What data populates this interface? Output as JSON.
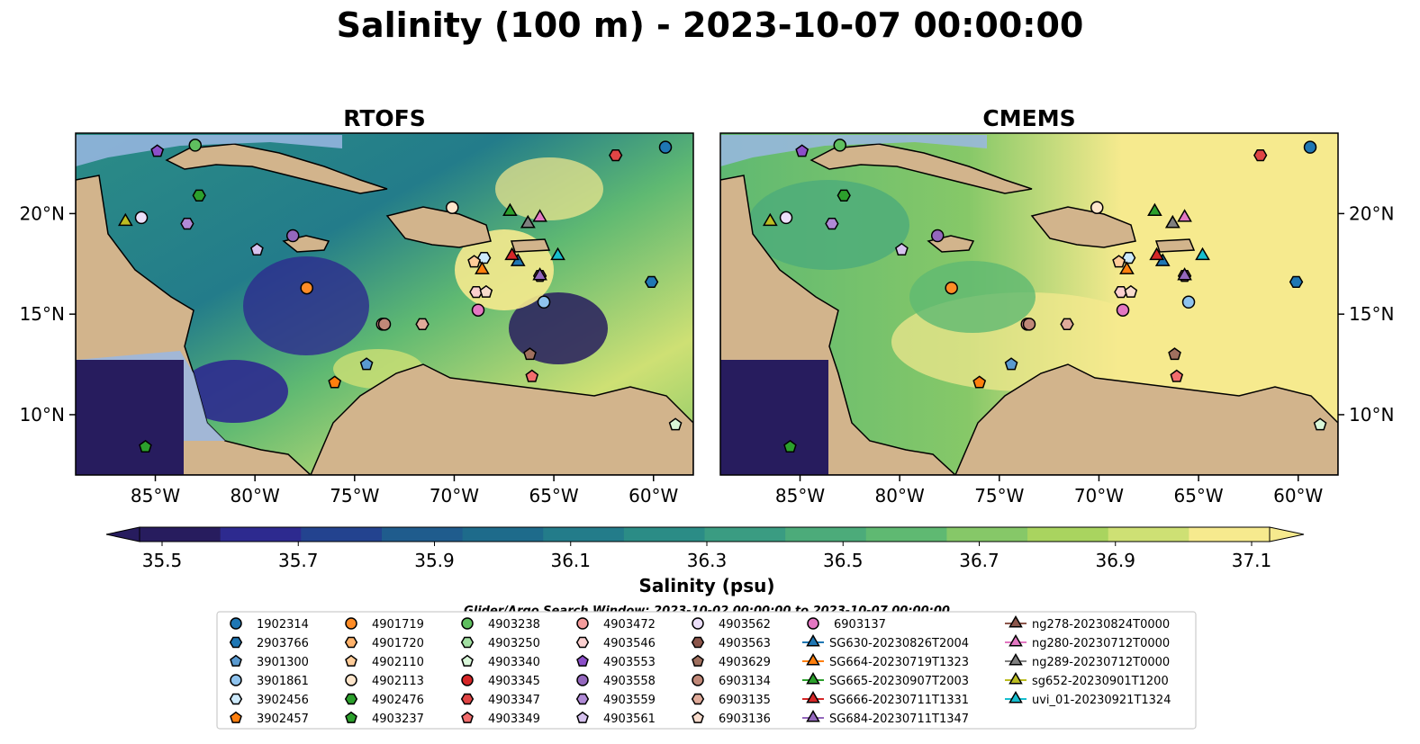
{
  "title": "Salinity (100 m) - 2023-10-07 00:00:00",
  "panels": [
    {
      "title": "RTOFS"
    },
    {
      "title": "CMEMS"
    }
  ],
  "lon_ticks": [
    "85°W",
    "80°W",
    "75°W",
    "70°W",
    "65°W",
    "60°W"
  ],
  "lat_ticks": [
    "20°N",
    "15°N",
    "10°N"
  ],
  "colorbar": {
    "label": "Salinity (psu)",
    "ticks": [
      "35.5",
      "35.7",
      "35.9",
      "36.1",
      "36.3",
      "36.5",
      "36.7",
      "36.9",
      "37.1"
    ],
    "colors": [
      "#271c5e",
      "#2d2a8f",
      "#23438f",
      "#1f5c8d",
      "#1e6b8b",
      "#237c8a",
      "#2b8c86",
      "#3a9c82",
      "#4cab7a",
      "#5fb972",
      "#86c868",
      "#a9d45f",
      "#cee074",
      "#f6ea8e"
    ]
  },
  "search_window": "Glider/Argo Search Window: 2023-10-02 00:00:00 to 2023-10-07 00:00:00",
  "colors": {
    "land": "#d2b48c",
    "shelf": "#9ab7e3"
  },
  "legend": [
    {
      "label": "1902314",
      "marker": "circle",
      "color": "#1f77b4"
    },
    {
      "label": "2903766",
      "marker": "hexagon",
      "color": "#1f77b4"
    },
    {
      "label": "3901300",
      "marker": "pentagon",
      "color": "#5a9ad0"
    },
    {
      "label": "3901861",
      "marker": "circle",
      "color": "#8fc3ee"
    },
    {
      "label": "3902456",
      "marker": "hexagon",
      "color": "#cdeafc"
    },
    {
      "label": "3902457",
      "marker": "pentagon",
      "color": "#ff7f0e"
    },
    {
      "label": "4901719",
      "marker": "circle",
      "color": "#ff8c26"
    },
    {
      "label": "4901720",
      "marker": "hexagon",
      "color": "#ffb26b"
    },
    {
      "label": "4902110",
      "marker": "pentagon",
      "color": "#ffcc99"
    },
    {
      "label": "4902113",
      "marker": "circle",
      "color": "#ffe6cc"
    },
    {
      "label": "4902476",
      "marker": "hexagon",
      "color": "#2ca02c"
    },
    {
      "label": "4903237",
      "marker": "pentagon",
      "color": "#2ca02c"
    },
    {
      "label": "4903238",
      "marker": "circle",
      "color": "#5fbf5f"
    },
    {
      "label": "4903250",
      "marker": "hexagon",
      "color": "#a3e0a3"
    },
    {
      "label": "4903340",
      "marker": "pentagon",
      "color": "#d9f7d9"
    },
    {
      "label": "4903345",
      "marker": "circle",
      "color": "#d62728"
    },
    {
      "label": "4903347",
      "marker": "hexagon",
      "color": "#e04545"
    },
    {
      "label": "4903349",
      "marker": "pentagon",
      "color": "#f26d6d"
    },
    {
      "label": "4903472",
      "marker": "circle",
      "color": "#f59c9c"
    },
    {
      "label": "4903546",
      "marker": "hexagon",
      "color": "#fbd0d0"
    },
    {
      "label": "4903553",
      "marker": "pentagon",
      "color": "#8c4fc9"
    },
    {
      "label": "4903558",
      "marker": "circle",
      "color": "#9467bd"
    },
    {
      "label": "4903559",
      "marker": "hexagon",
      "color": "#b08ad6"
    },
    {
      "label": "4903561",
      "marker": "pentagon",
      "color": "#d6c2ee"
    },
    {
      "label": "4903562",
      "marker": "circle",
      "color": "#ecdffa"
    },
    {
      "label": "4903563",
      "marker": "hexagon",
      "color": "#8c564b"
    },
    {
      "label": "4903629",
      "marker": "pentagon",
      "color": "#a0705f"
    },
    {
      "label": "6903134",
      "marker": "circle",
      "color": "#c08878"
    },
    {
      "label": "6903135",
      "marker": "hexagon",
      "color": "#e0ab9a"
    },
    {
      "label": "6903136",
      "marker": "pentagon",
      "color": "#f8dccd"
    },
    {
      "label": "6903137",
      "marker": "circle",
      "color": "#e377c2"
    },
    {
      "label": "SG630-20230826T2004",
      "marker": "triangle",
      "color": "#1f77b4"
    },
    {
      "label": "SG664-20230719T1323",
      "marker": "triangle",
      "color": "#ff7f0e"
    },
    {
      "label": "SG665-20230907T2003",
      "marker": "triangle",
      "color": "#2ca02c"
    },
    {
      "label": "SG666-20230711T1331",
      "marker": "triangle",
      "color": "#d62728"
    },
    {
      "label": "SG684-20230711T1347",
      "marker": "triangle",
      "color": "#9467bd"
    },
    {
      "label": "ng278-20230824T0000",
      "marker": "triangle",
      "color": "#8c564b"
    },
    {
      "label": "ng280-20230712T0000",
      "marker": "triangle",
      "color": "#e377c2"
    },
    {
      "label": "ng289-20230712T0000",
      "marker": "triangle",
      "color": "#7f7f7f"
    },
    {
      "label": "sg652-20230901T1200",
      "marker": "triangle",
      "color": "#bcbd22"
    },
    {
      "label": "uvi_01-20230921T1324",
      "marker": "triangle",
      "color": "#17becf"
    }
  ],
  "stations": [
    {
      "label": "1902314",
      "lon": -59.4,
      "lat": 23.3
    },
    {
      "label": "2903766",
      "lon": -60.1,
      "lat": 16.6
    },
    {
      "label": "3901300",
      "lon": -74.4,
      "lat": 12.5
    },
    {
      "label": "3901861",
      "lon": -65.5,
      "lat": 15.6
    },
    {
      "label": "3902456",
      "lon": -68.5,
      "lat": 17.8
    },
    {
      "label": "3902457",
      "lon": -76.0,
      "lat": 11.6
    },
    {
      "label": "4901719",
      "lon": -77.4,
      "lat": 16.3
    },
    {
      "label": "4902110",
      "lon": -69.0,
      "lat": 17.6
    },
    {
      "label": "4902113",
      "lon": -70.1,
      "lat": 20.3
    },
    {
      "label": "4902476",
      "lon": -82.8,
      "lat": 20.9
    },
    {
      "label": "4903237",
      "lon": -85.5,
      "lat": 8.4
    },
    {
      "label": "4903238",
      "lon": -83.0,
      "lat": 23.4
    },
    {
      "label": "4903340",
      "lon": -58.9,
      "lat": 9.5
    },
    {
      "label": "4903347",
      "lon": -61.9,
      "lat": 22.9
    },
    {
      "label": "4903349",
      "lon": -66.1,
      "lat": 11.9
    },
    {
      "label": "4903472",
      "lon": -73.6,
      "lat": 14.5
    },
    {
      "label": "4903546",
      "lon": -68.9,
      "lat": 16.1
    },
    {
      "label": "4903553",
      "lon": -84.9,
      "lat": 23.1
    },
    {
      "label": "4903558",
      "lon": -78.1,
      "lat": 18.9
    },
    {
      "label": "4903559",
      "lon": -83.4,
      "lat": 19.5
    },
    {
      "label": "4903561",
      "lon": -79.9,
      "lat": 18.2
    },
    {
      "label": "4903562",
      "lon": -85.7,
      "lat": 19.8
    },
    {
      "label": "4903563",
      "lon": -65.7,
      "lat": 16.9
    },
    {
      "label": "4903629",
      "lon": -66.2,
      "lat": 13.0
    },
    {
      "label": "6903134",
      "lon": -73.5,
      "lat": 14.5
    },
    {
      "label": "6903135",
      "lon": -71.6,
      "lat": 14.5
    },
    {
      "label": "6903136",
      "lon": -68.4,
      "lat": 16.1
    },
    {
      "label": "6903137",
      "lon": -68.8,
      "lat": 15.2
    },
    {
      "label": "SG630-20230826T2004",
      "lon": -66.8,
      "lat": 17.6
    },
    {
      "label": "SG664-20230719T1323",
      "lon": -68.6,
      "lat": 17.2
    },
    {
      "label": "SG665-20230907T2003",
      "lon": -67.2,
      "lat": 20.1
    },
    {
      "label": "SG666-20230711T1331",
      "lon": -67.1,
      "lat": 17.9
    },
    {
      "label": "SG684-20230711T1347",
      "lon": -65.7,
      "lat": 16.9
    },
    {
      "label": "ng278-20230824T0000",
      "lon": -66.3,
      "lat": 19.5
    },
    {
      "label": "ng280-20230712T0000",
      "lon": -65.7,
      "lat": 19.8
    },
    {
      "label": "ng289-20230712T0000",
      "lon": -66.3,
      "lat": 19.5
    },
    {
      "label": "sg652-20230901T1200",
      "lon": -86.5,
      "lat": 19.6
    },
    {
      "label": "uvi_01-20230921T1324",
      "lon": -64.8,
      "lat": 17.9
    }
  ]
}
